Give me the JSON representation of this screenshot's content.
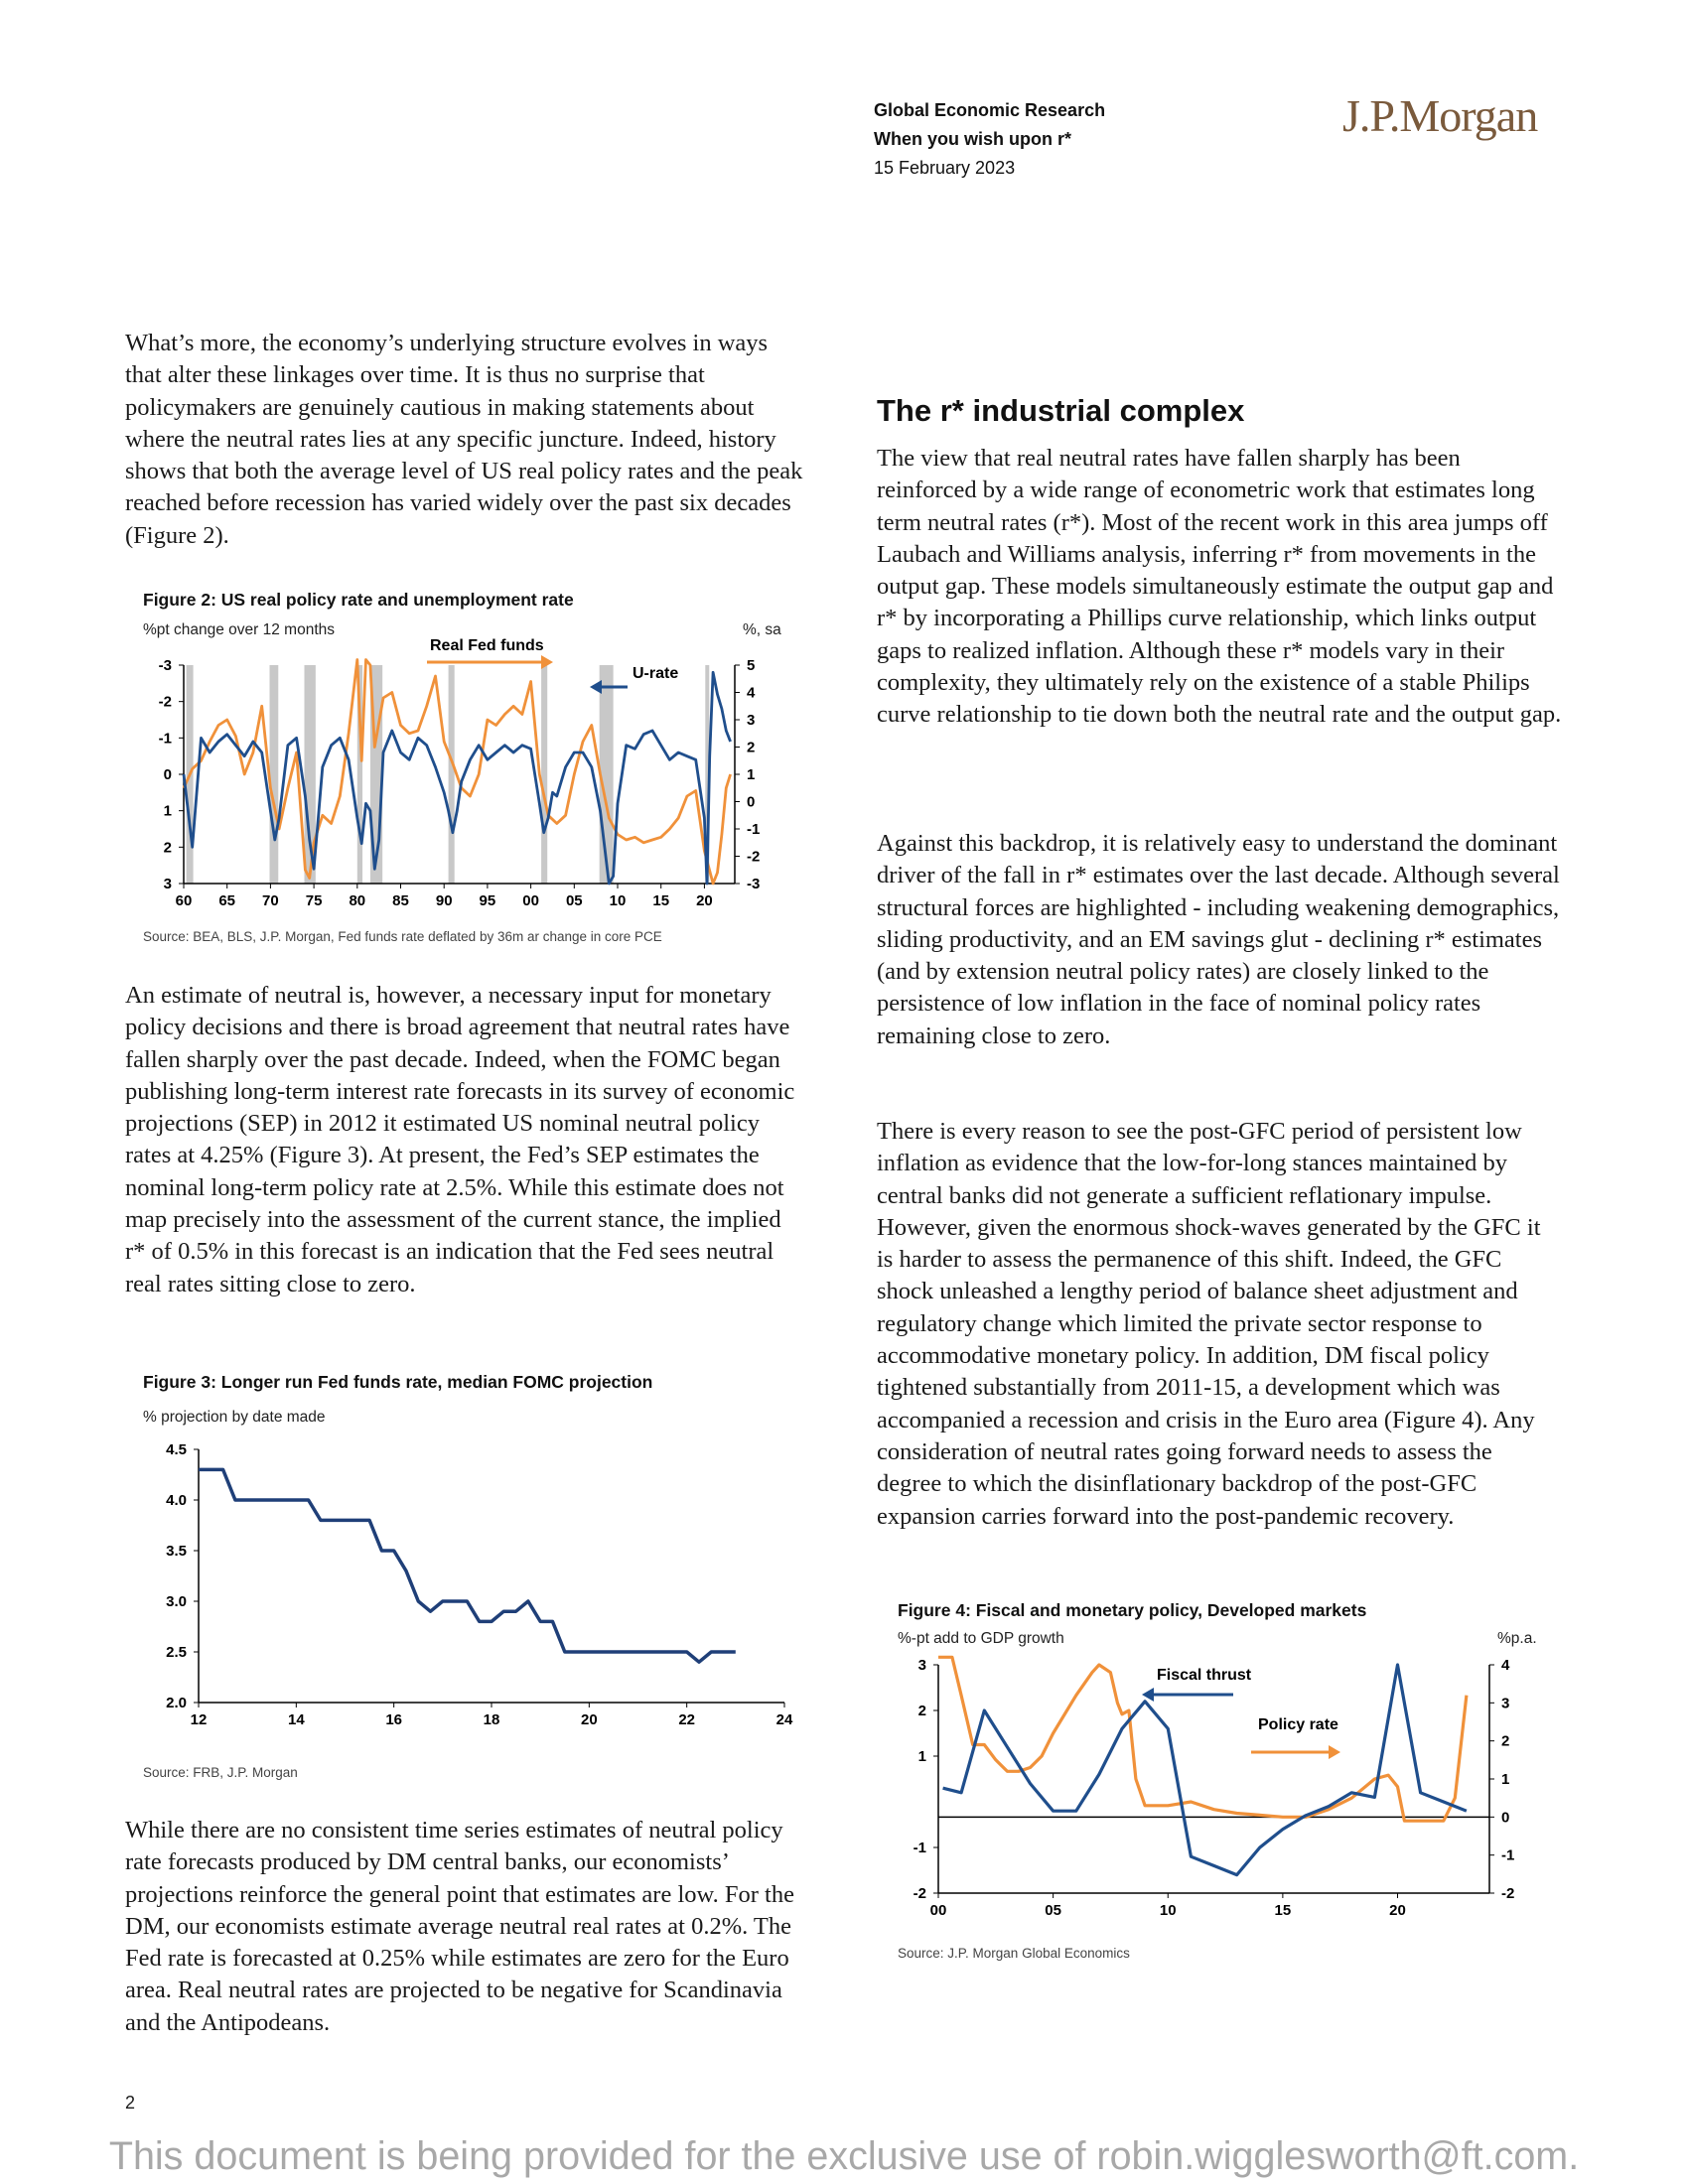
{
  "header": {
    "dept": "Global Economic Research",
    "report_title": "When you wish upon r*",
    "date": "15 February 2023",
    "logo": "J.P.Morgan"
  },
  "body": {
    "p1": "What’s more, the economy’s underlying structure evolves in ways that alter these linkages over time. It is thus no surprise that policymakers are genuinely cautious in making statements about where the neutral rates lies at any specific juncture. Indeed, history shows that both the average level of US real policy rates and the peak reached before recession has varied widely over the past six decades (Figure 2).",
    "p2": "An estimate of neutral is, however, a necessary input for monetary policy decisions and there is broad agreement that neutral rates have fallen sharply over the past decade. Indeed, when the FOMC began publishing long-term interest rate forecasts in its survey of economic projections (SEP) in 2012 it estimated US nominal neutral policy rates at 4.25% (Figure 3). At present, the Fed’s SEP estimates the nominal long-term policy rate at 2.5%. While this estimate does not map precisely into the assessment of the current stance, the implied r* of 0.5% in this forecast is an indication that the Fed sees neutral real rates sitting close to zero.",
    "p3": "While there are no consistent time series estimates of neutral policy rate forecasts produced by DM central banks, our economists’ projections reinforce the general point that estimates are low. For the DM, our economists estimate average neutral real rates at 0.2%. The Fed rate is forecasted at 0.25% while estimates are zero for the Euro area. Real neutral rates are projected to be negative for Scandinavia and the Antipodeans.",
    "heading": "The r* industrial complex",
    "p4": "The view that real neutral rates have fallen sharply has been reinforced by a wide range of econometric work that estimates long term neutral rates (r*). Most of the recent work in this area jumps off Laubach and Williams analysis, inferring r* from movements in the output gap. These models simultaneously estimate the output gap and r* by incorporating a Phillips curve relationship, which links output gaps to realized inflation. Although these r* models vary in their complexity, they ultimately rely on the existence of a stable Philips curve relationship to tie down both the neutral rate and the output gap.",
    "p5": "Against this backdrop, it is relatively easy to understand the dominant driver of the fall in r* estimates over the last decade. Although several structural forces are highlighted - including weakening demographics, sliding productivity, and an EM savings glut - declining r* estimates (and by extension neutral policy rates) are closely linked to the persistence of low inflation in the face of nominal policy rates remaining close to zero.",
    "p6": "There is every reason to see the post-GFC period of persistent low inflation as evidence that the low-for-long stances maintained by central banks did not generate a sufficient reflationary impulse. However, given the enormous shock-waves generated by the GFC it is harder to assess the permanence of this shift. Indeed, the GFC shock unleashed a lengthy period of balance sheet adjustment and regulatory change which limited the private sector response to accommodative monetary policy. In addition, DM fiscal policy tightened substantially from 2011-15, a development which was accompanied a recession and crisis in the Euro area (Figure 4). Any consideration of neutral rates going forward needs to assess the degree to which the disinflationary backdrop of the post-GFC expansion carries forward into the post-pandemic recovery."
  },
  "figures": {
    "fig2": {
      "title": "Figure 2: US real policy rate and unemployment rate",
      "left_unit": "%pt change over 12 months",
      "right_unit": "%, sa",
      "source": "Source: BEA, BLS, J.P. Morgan, Fed funds rate deflated by 36m ar change in core PCE"
    },
    "fig3": {
      "title": "Figure 3: Longer run Fed funds rate, median FOMC projection",
      "unit": "% projection by date made",
      "source": "Source: FRB, J.P. Morgan"
    },
    "fig4": {
      "title": "Figure 4: Fiscal and monetary policy, Developed markets",
      "left_unit": "%-pt add to GDP growth",
      "right_unit": "%p.a.",
      "source": "Source: J.P. Morgan Global Economics"
    }
  },
  "chart_data": [
    {
      "id": "fig2",
      "type": "line",
      "title": "Figure 2: US real policy rate and unemployment rate",
      "x_ticks": [
        "60",
        "65",
        "70",
        "75",
        "80",
        "85",
        "90",
        "95",
        "00",
        "05",
        "10",
        "15",
        "20"
      ],
      "left_axis": {
        "label": "%pt change over 12 months",
        "ticks": [
          "-3",
          "-2",
          "-1",
          "0",
          "1",
          "2",
          "3"
        ],
        "ylim": [
          3,
          -3
        ],
        "inverted": true
      },
      "right_axis": {
        "label": "%, sa",
        "ticks": [
          "5",
          "4",
          "3",
          "2",
          "1",
          "0",
          "-1",
          "-2",
          "-3"
        ],
        "ylim": [
          -3,
          5
        ]
      },
      "recession_bands": [
        [
          1960.3,
          1961.1
        ],
        [
          1969.9,
          1970.9
        ],
        [
          1973.9,
          1975.2
        ],
        [
          1980.0,
          1980.6
        ],
        [
          1981.5,
          1982.9
        ],
        [
          1990.5,
          1991.2
        ],
        [
          2001.2,
          2001.9
        ],
        [
          2007.9,
          2009.5
        ],
        [
          2020.1,
          2020.4
        ]
      ],
      "series": [
        {
          "name": "U-rate",
          "axis": "left",
          "color": "#1f4e8c",
          "x": [
            1960,
            1960.5,
            1961,
            1961.5,
            1962,
            1963,
            1964,
            1965,
            1966,
            1967,
            1968,
            1969,
            1970,
            1970.5,
            1971,
            1971.5,
            1972,
            1973,
            1974,
            1974.5,
            1975,
            1975.5,
            1976,
            1977,
            1978,
            1979,
            1980,
            1980.5,
            1981,
            1981.5,
            1982,
            1982.5,
            1983,
            1984,
            1985,
            1986,
            1987,
            1988,
            1989,
            1990,
            1990.5,
            1991,
            1991.5,
            1992,
            1993,
            1994,
            1995,
            1996,
            1997,
            1998,
            1999,
            2000,
            2001,
            2001.5,
            2002,
            2002.5,
            2003,
            2004,
            2005,
            2006,
            2007,
            2008,
            2008.5,
            2009,
            2009.5,
            2010,
            2011,
            2012,
            2013,
            2014,
            2015,
            2016,
            2017,
            2018,
            2019,
            2020,
            2020.3,
            2020.6,
            2021,
            2021.5,
            2022,
            2022.5,
            2023
          ],
          "y": [
            0,
            1.0,
            2.0,
            0.5,
            -1.0,
            -0.6,
            -0.9,
            -1.1,
            -0.8,
            -0.5,
            -0.9,
            -0.6,
            1.0,
            1.8,
            1.2,
            0.2,
            -0.8,
            -1.0,
            0.6,
            1.8,
            2.6,
            1.2,
            -0.2,
            -0.8,
            -1.0,
            -0.4,
            1.2,
            1.9,
            0.8,
            1.0,
            2.6,
            1.8,
            -0.6,
            -1.2,
            -0.6,
            -0.4,
            -1.0,
            -0.8,
            -0.2,
            0.5,
            1.0,
            1.6,
            1.0,
            0.2,
            -0.4,
            -0.8,
            -0.4,
            -0.6,
            -0.8,
            -0.6,
            -0.8,
            -0.7,
            0.8,
            1.6,
            1.2,
            0.5,
            0.6,
            -0.2,
            -0.6,
            -0.6,
            -0.2,
            1.0,
            2.0,
            3.0,
            2.8,
            0.8,
            -0.8,
            -0.7,
            -1.1,
            -1.2,
            -0.8,
            -0.4,
            -0.6,
            -0.5,
            -0.4,
            1.2,
            3.0,
            -0.5,
            -2.8,
            -2.2,
            -1.8,
            -1.2,
            -0.9
          ]
        },
        {
          "name": "Real Fed funds",
          "axis": "right",
          "color": "#f0913a",
          "x": [
            1960,
            1961,
            1962,
            1963,
            1964,
            1965,
            1966,
            1967,
            1968,
            1969,
            1970,
            1971,
            1972,
            1973,
            1974,
            1974.5,
            1975,
            1976,
            1977,
            1978,
            1979,
            1980,
            1980.5,
            1981,
            1981.5,
            1982,
            1983,
            1984,
            1985,
            1986,
            1987,
            1988,
            1989,
            1990,
            1991,
            1992,
            1993,
            1994,
            1995,
            1996,
            1997,
            1998,
            1999,
            2000,
            2001,
            2002,
            2003,
            2004,
            2005,
            2006,
            2007,
            2008,
            2009,
            2010,
            2011,
            2012,
            2013,
            2014,
            2015,
            2016,
            2017,
            2018,
            2019,
            2020,
            2021,
            2021.5,
            2022,
            2022.5,
            2023
          ],
          "y": [
            0.5,
            1.2,
            1.5,
            2.2,
            2.8,
            3.0,
            2.4,
            1.0,
            1.8,
            3.5,
            0.5,
            -1.0,
            0.5,
            1.8,
            -2.5,
            -2.8,
            -1.5,
            -0.5,
            -0.8,
            0.2,
            2.5,
            5.2,
            1.5,
            5.2,
            5.0,
            2.0,
            3.8,
            4.0,
            2.8,
            2.5,
            2.6,
            3.5,
            4.6,
            2.2,
            1.4,
            0.5,
            0.2,
            1.0,
            3.0,
            2.8,
            3.2,
            3.5,
            3.2,
            4.4,
            1.0,
            -0.5,
            -0.8,
            -0.5,
            1.0,
            2.2,
            2.8,
            1.0,
            -0.6,
            -1.2,
            -1.4,
            -1.3,
            -1.5,
            -1.4,
            -1.3,
            -1.0,
            -0.6,
            0.2,
            0.4,
            -1.8,
            -3.0,
            -2.6,
            -1.2,
            0.5,
            1.0
          ]
        }
      ],
      "annotations": [
        "Real Fed funds",
        "U-rate"
      ]
    },
    {
      "id": "fig3",
      "type": "line",
      "title": "Figure 3: Longer run Fed funds rate, median FOMC projection",
      "ylabel": "% projection by date made",
      "x_ticks": [
        "12",
        "14",
        "16",
        "18",
        "20",
        "22",
        "24"
      ],
      "y_ticks": [
        "2.0",
        "2.5",
        "3.0",
        "3.5",
        "4.0",
        "4.5"
      ],
      "xlim": [
        12,
        24
      ],
      "ylim": [
        2.0,
        4.5
      ],
      "series": [
        {
          "name": "",
          "color": "#1f3f78",
          "x": [
            12.0,
            12.25,
            12.5,
            12.75,
            13.0,
            13.25,
            13.5,
            13.75,
            14.0,
            14.25,
            14.5,
            14.75,
            15.0,
            15.25,
            15.5,
            15.75,
            16.0,
            16.25,
            16.5,
            16.75,
            17.0,
            17.25,
            17.5,
            17.75,
            18.0,
            18.25,
            18.5,
            18.75,
            19.0,
            19.25,
            19.5,
            19.75,
            20.0,
            20.25,
            20.5,
            20.75,
            21.0,
            21.25,
            21.5,
            21.75,
            22.0,
            22.25,
            22.5,
            22.75,
            23.0
          ],
          "y": [
            4.3,
            4.3,
            4.3,
            4.0,
            4.0,
            4.0,
            4.0,
            4.0,
            4.0,
            4.0,
            3.8,
            3.8,
            3.8,
            3.8,
            3.8,
            3.5,
            3.5,
            3.3,
            3.0,
            2.9,
            3.0,
            3.0,
            3.0,
            2.8,
            2.8,
            2.9,
            2.9,
            3.0,
            2.8,
            2.8,
            2.5,
            2.5,
            2.5,
            2.5,
            2.5,
            2.5,
            2.5,
            2.5,
            2.5,
            2.5,
            2.5,
            2.4,
            2.5,
            2.5,
            2.5
          ]
        }
      ]
    },
    {
      "id": "fig4",
      "type": "line",
      "title": "Figure 4: Fiscal and monetary policy, Developed markets",
      "x_ticks": [
        "00",
        "05",
        "10",
        "15",
        "20"
      ],
      "left_axis": {
        "label": "%-pt add to GDP growth",
        "ticks": [
          "3",
          "2",
          "1",
          "-1",
          "-2"
        ],
        "ylim": [
          -2,
          3
        ]
      },
      "right_axis": {
        "label": "%p.a.",
        "ticks": [
          "4",
          "3",
          "2",
          "1",
          "0",
          "-1",
          "-2"
        ],
        "ylim": [
          -2,
          4
        ]
      },
      "series": [
        {
          "name": "Fiscal thrust",
          "axis": "left",
          "color": "#1f4e8c",
          "x": [
            2000.2,
            2001,
            2002,
            2003,
            2004,
            2005,
            2006,
            2007,
            2008,
            2009,
            2010,
            2011,
            2012,
            2013,
            2014,
            2015,
            2016,
            2017,
            2018,
            2019,
            2020,
            2021,
            2022,
            2023
          ],
          "y": [
            0.3,
            0.2,
            2.0,
            1.2,
            0.4,
            -0.2,
            -0.2,
            0.6,
            1.6,
            2.2,
            1.6,
            -1.2,
            -1.4,
            -1.6,
            -1.0,
            -0.6,
            -0.3,
            -0.1,
            0.2,
            0.1,
            3.0,
            0.2,
            0.0,
            -0.2
          ]
        },
        {
          "name": "Policy rate",
          "axis": "right",
          "color": "#f0913a",
          "x": [
            2000,
            2000.6,
            2001,
            2001.5,
            2002,
            2002.5,
            2003,
            2003.5,
            2004,
            2004.5,
            2005,
            2006,
            2006.7,
            2007,
            2007.5,
            2007.8,
            2008,
            2008.3,
            2008.6,
            2009,
            2010,
            2011,
            2012,
            2013,
            2014,
            2015,
            2016,
            2017,
            2018,
            2019,
            2019.6,
            2020,
            2020.3,
            2021,
            2022,
            2022.5,
            2023
          ],
          "y": [
            4.2,
            4.2,
            3.2,
            1.9,
            1.9,
            1.5,
            1.2,
            1.2,
            1.3,
            1.6,
            2.2,
            3.2,
            3.8,
            4.0,
            3.8,
            3.0,
            2.7,
            2.8,
            1.0,
            0.3,
            0.3,
            0.4,
            0.2,
            0.1,
            0.05,
            0.0,
            0.0,
            0.2,
            0.5,
            1.0,
            1.1,
            0.8,
            -0.1,
            -0.1,
            -0.1,
            0.5,
            3.2
          ]
        }
      ],
      "annotations": [
        "Fiscal thrust",
        "Policy rate"
      ]
    }
  ],
  "page_number": "2",
  "footer": "This document is being provided for the exclusive use of robin.wigglesworth@ft.com."
}
